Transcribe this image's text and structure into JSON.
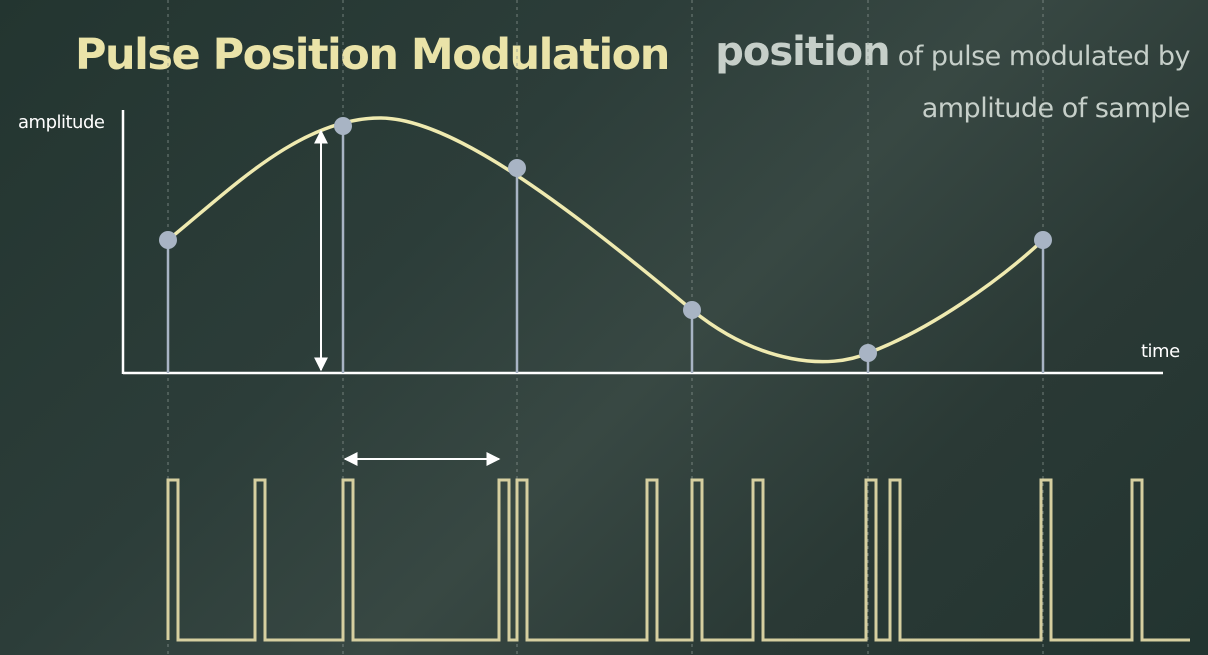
{
  "title": "Pulse Position Modulation",
  "subtitle": {
    "emphasis": "position",
    "line1_rest": " of pulse modulated by",
    "line2": "amplitude of sample"
  },
  "axes": {
    "y_label": "amplitude",
    "x_label": "time"
  },
  "colors": {
    "background": "#2c3d39",
    "curve": "#efeab0",
    "sample_dot": "#a8b4c4",
    "pulse_train": "#d6cfa0",
    "axis": "#ffffff",
    "title": "#eae3a8",
    "subtitle": "#c6cfc9"
  },
  "samples": [
    {
      "index": 1,
      "amplitude": "medium"
    },
    {
      "index": 2,
      "amplitude": "high"
    },
    {
      "index": 3,
      "amplitude": "medium-high"
    },
    {
      "index": 4,
      "amplitude": "low"
    },
    {
      "index": 5,
      "amplitude": "lowest"
    },
    {
      "index": 6,
      "amplitude": "medium"
    }
  ],
  "annotations": {
    "vertical_arrow": "amplitude of sample",
    "horizontal_arrow": "pulse delay from sample time"
  }
}
